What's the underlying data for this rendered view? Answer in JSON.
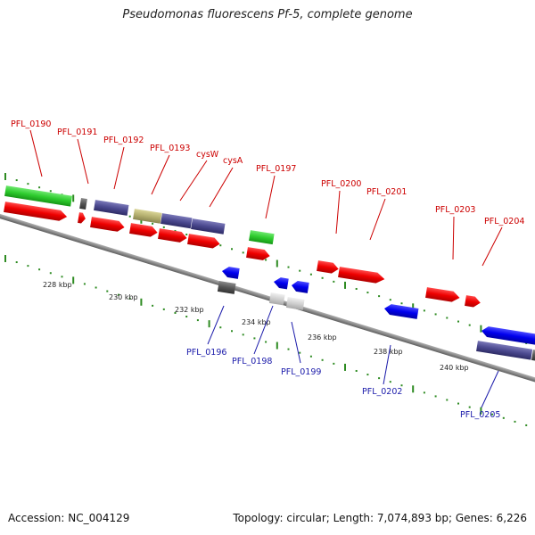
{
  "title": "Pseudomonas fluorescens Pf-5, complete genome",
  "accession": "Accession: NC_004129",
  "summary": "Topology: circular; Length: 7,074,893 bp; Genes: 6,226",
  "colors": {
    "forward_label": "#cc0000",
    "reverse_label": "#1a1aaa",
    "backbone": "#888888",
    "tick_green": "#2e8b22"
  },
  "scale_ticks": [
    {
      "label": "228 kbp"
    },
    {
      "label": "230 kbp"
    },
    {
      "label": "232 kbp"
    },
    {
      "label": "234 kbp"
    },
    {
      "label": "236 kbp"
    },
    {
      "label": "238 kbp"
    },
    {
      "label": "240 kbp"
    }
  ],
  "genes": [
    {
      "label": "PFL_0190",
      "strand": "forward",
      "color": "red-arrow"
    },
    {
      "label": "PFL_0191",
      "strand": "forward",
      "color": "red-arrow"
    },
    {
      "label": "PFL_0192",
      "strand": "forward",
      "color": "red-arrow"
    },
    {
      "label": "PFL_0193",
      "strand": "forward",
      "color": "red-arrow"
    },
    {
      "label": "cysW",
      "strand": "forward",
      "color": "red-arrow"
    },
    {
      "label": "cysA",
      "strand": "forward",
      "color": "red-arrow"
    },
    {
      "label": "PFL_0197",
      "strand": "forward",
      "color": "red-arrow"
    },
    {
      "label": "PFL_0200",
      "strand": "forward",
      "color": "red-arrow"
    },
    {
      "label": "PFL_0201",
      "strand": "forward",
      "color": "red-arrow"
    },
    {
      "label": "PFL_0203",
      "strand": "forward",
      "color": "red-arrow"
    },
    {
      "label": "PFL_0204",
      "strand": "forward",
      "color": "red-arrow"
    },
    {
      "label": "PFL_0196",
      "strand": "reverse",
      "color": "blue-arrow"
    },
    {
      "label": "PFL_0198",
      "strand": "reverse",
      "color": "blue-arrow"
    },
    {
      "label": "PFL_0199",
      "strand": "reverse",
      "color": "blue-arrow"
    },
    {
      "label": "PFL_0202",
      "strand": "reverse",
      "color": "blue-arrow"
    },
    {
      "label": "PFL_0205",
      "strand": "reverse",
      "color": "blue-arrow"
    }
  ]
}
